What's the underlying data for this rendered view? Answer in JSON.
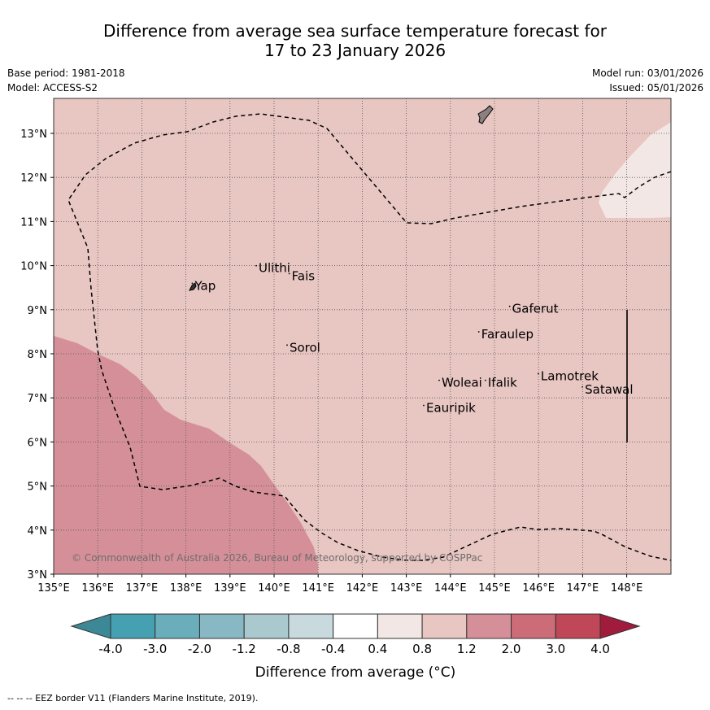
{
  "title": {
    "line1": "Difference from average sea surface temperature forecast for",
    "line2": "17 to 23 January 2026"
  },
  "meta": {
    "base_period": "Base period: 1981-2018",
    "model": "Model: ACCESS-S2",
    "model_run": "Model run: 03/01/2026",
    "issued": "Issued: 05/01/2026"
  },
  "map": {
    "lon_range": [
      135,
      149
    ],
    "lat_range": [
      3,
      13.8
    ],
    "lon_ticks": [
      "135°E",
      "136°E",
      "137°E",
      "138°E",
      "139°E",
      "140°E",
      "141°E",
      "142°E",
      "143°E",
      "144°E",
      "145°E",
      "146°E",
      "147°E",
      "148°E"
    ],
    "lat_ticks": [
      "3°N",
      "4°N",
      "5°N",
      "6°N",
      "7°N",
      "8°N",
      "9°N",
      "10°N",
      "11°N",
      "12°N",
      "13°N"
    ],
    "places": [
      {
        "name": "Yap",
        "lon": 138.2,
        "lat": 9.45
      },
      {
        "name": "Ulithi",
        "lon": 139.65,
        "lat": 9.85
      },
      {
        "name": "Fais",
        "lon": 140.4,
        "lat": 9.67
      },
      {
        "name": "Gaferut",
        "lon": 145.4,
        "lat": 8.93
      },
      {
        "name": "Faraulep",
        "lon": 144.7,
        "lat": 8.35
      },
      {
        "name": "Sorol",
        "lon": 140.35,
        "lat": 8.05
      },
      {
        "name": "Woleai",
        "lon": 143.8,
        "lat": 7.25
      },
      {
        "name": "Ifalik",
        "lon": 144.85,
        "lat": 7.25
      },
      {
        "name": "Lamotrek",
        "lon": 146.05,
        "lat": 7.4
      },
      {
        "name": "Satawal",
        "lon": 147.05,
        "lat": 7.1
      },
      {
        "name": "Eauripik",
        "lon": 143.45,
        "lat": 6.68
      }
    ],
    "copyright": "© Commonwealth of Australia 2026, Bureau of Meteorology, supported by COSPPac"
  },
  "colorbar": {
    "colors": [
      "#45a0b2",
      "#6aaebb",
      "#88b8c4",
      "#a9c9cf",
      "#c9dade",
      "#ffffff",
      "#f3e7e5",
      "#e8c6c2",
      "#d58f98",
      "#cb6c78",
      "#c04757"
    ],
    "low_color": "#3d8896",
    "high_color": "#a11c3c",
    "labels": [
      "-4.0",
      "-3.0",
      "-2.0",
      "-1.2",
      "-0.8",
      "-0.4",
      "0.4",
      "0.8",
      "1.2",
      "2.0",
      "3.0",
      "4.0"
    ],
    "label": "Difference from average (°C)"
  },
  "footer": "-- -- -- EEZ border V11 (Flanders Marine Institute, 2019)."
}
